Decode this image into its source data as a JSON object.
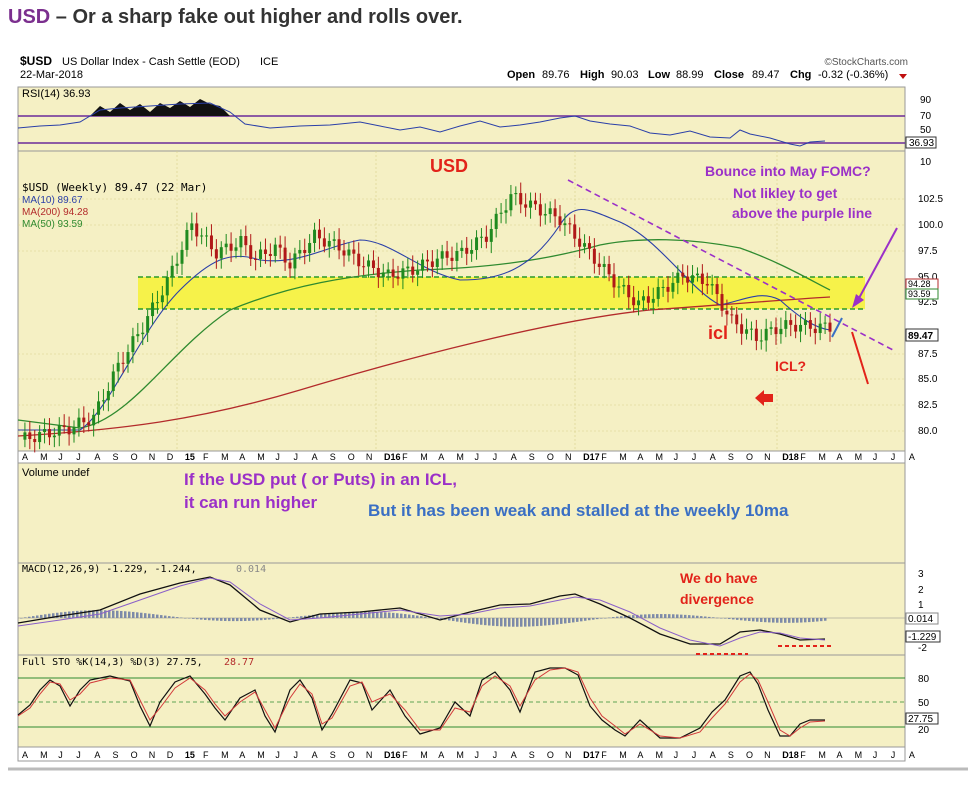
{
  "header": {
    "symbol": "USD",
    "title_rest": " – Or a sharp fake out higher and rolls over."
  },
  "chart_header": {
    "symbol": "$USD",
    "name": "US Dollar Index - Cash Settle (EOD)",
    "exchange": "ICE",
    "date": "22-Mar-2018",
    "source": "©StockCharts.com",
    "open_label": "Open",
    "open": "89.76",
    "high_label": "High",
    "high": "90.03",
    "low_label": "Low",
    "low": "88.99",
    "close_label": "Close",
    "close": "89.47",
    "chg_label": "Chg",
    "chg": "-0.32 (-0.36%)"
  },
  "colors": {
    "panel_bg": "#f5f0c4",
    "band": "#f6f24a",
    "band_line": "#2a9a2a",
    "purple": "#9b30c8",
    "red": "#e2231a",
    "blue": "#3a6fc4",
    "ma10": "#2a3fa8",
    "ma200": "#b32b2b",
    "ma50": "#2f8a2f",
    "candle_up": "#1f8a1f",
    "candle_dn": "#b01818"
  },
  "chart_data": [
    {
      "type": "line",
      "title": "RSI(14) 36.93",
      "ylim": [
        0,
        100
      ],
      "y_ticks": [
        "90",
        "70",
        "50",
        "10"
      ],
      "last_value": "36.93",
      "reference_lines": [
        70,
        30
      ]
    },
    {
      "type": "candlestick",
      "title": "$USD (Weekly) 89.47 (22 Mar)",
      "legend": [
        {
          "name": "MA(10) 89.67",
          "color": "#2a3fa8"
        },
        {
          "name": "MA(200) 94.28",
          "color": "#b32b2b"
        },
        {
          "name": "MA(50) 93.59",
          "color": "#2f8a2f"
        }
      ],
      "ylim": [
        78.5,
        105
      ],
      "y_ticks": [
        "102.5",
        "100.0",
        "97.5",
        "95.0",
        "92.5",
        "87.5",
        "85.0",
        "82.5",
        "80.0"
      ],
      "last_labels": [
        "94.28",
        "93.59",
        "89.47"
      ],
      "x_ticks": [
        "A",
        "M",
        "J",
        "J",
        "A",
        "S",
        "O",
        "N",
        "D",
        "15",
        "F",
        "M",
        "A",
        "M",
        "J",
        "J",
        "A",
        "S",
        "O",
        "N",
        "D16",
        "F",
        "M",
        "A",
        "M",
        "J",
        "J",
        "A",
        "S",
        "O",
        "N",
        "D17",
        "F",
        "M",
        "A",
        "M",
        "J",
        "J",
        "A",
        "S",
        "O",
        "N",
        "D18",
        "F",
        "M",
        "A",
        "M",
        "J",
        "J",
        "A"
      ],
      "close_series": {
        "x": [
          0,
          5,
          10,
          15,
          20,
          25,
          30,
          35,
          40,
          45,
          48,
          52,
          55,
          60,
          65,
          70,
          75,
          80,
          85,
          90,
          95,
          100,
          105,
          110,
          115,
          118,
          122,
          126,
          130,
          135,
          140,
          145,
          150,
          155,
          158,
          161,
          162,
          165
        ],
        "y": [
          79.5,
          80.0,
          80.5,
          81.5,
          86.0,
          89.5,
          93.5,
          98.5,
          96.0,
          97.0,
          95.5,
          96.5,
          95.0,
          97.5,
          96.5,
          95.0,
          94.0,
          94.5,
          95.5,
          96.0,
          97.5,
          101.0,
          100.0,
          99.0,
          96.5,
          95.0,
          93.0,
          91.5,
          92.5,
          94.0,
          93.5,
          90.0,
          88.5,
          89.5,
          89.6,
          89.5,
          89.4,
          89.47
        ]
      },
      "band": [
        92.0,
        95.2
      ],
      "annotations": [
        "USD",
        "Bounce into May FOMC?",
        "Not likley to get",
        "above the purple line",
        "icl",
        "ICL?"
      ]
    },
    {
      "type": "bar",
      "title": "Volume undef"
    },
    {
      "type": "line",
      "title": "MACD(12,26,9) -1.229, -1.244, 0.014",
      "y_ticks": [
        "3",
        "2",
        "1",
        "0.014",
        "-1.229",
        "-2"
      ]
    },
    {
      "type": "line",
      "title": "Full STO %K(14,3) %D(3) 27.75, 28.77",
      "y_ticks": [
        "80",
        "50",
        "27.75",
        "20"
      ]
    }
  ],
  "annotations": {
    "usd_label": "USD",
    "bounce1": "Bounce into May FOMC?",
    "bounce2": "Not likley to get",
    "bounce3": "above the purple line",
    "icl_low": "icl",
    "icl_q": "ICL?",
    "icl_text1": "If the USD put ( or Puts) in an ICL,",
    "icl_text2": "it can run higher",
    "weak_text": "But it has been weak and stalled at the weekly 10ma",
    "div1": "We do have",
    "div2": "divergence"
  },
  "labels": {
    "rsi": "RSI(14) 36.93",
    "price_title": "$USD (Weekly) 89.47 (22 Mar)",
    "ma10": "MA(10) 89.67",
    "ma200": "MA(200) 94.28",
    "ma50": "MA(50) 93.59",
    "volume": "Volume undef",
    "macd_a": "MACD(12,26,9) -1.229, -1.244,",
    "macd_b": "0.014",
    "sto_a": "Full STO %K(14,3) %D(3) 27.75,",
    "sto_b": "28.77"
  }
}
